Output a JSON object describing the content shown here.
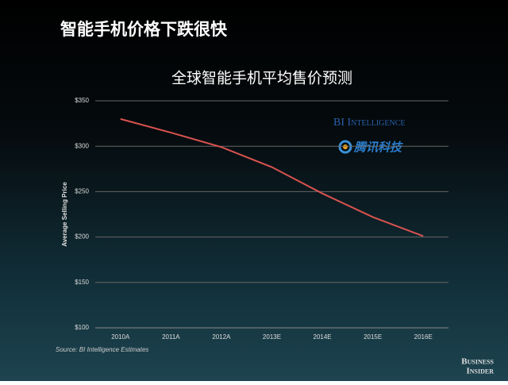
{
  "header": {
    "title": "智能手机价格下跌很快"
  },
  "chart_data": {
    "type": "line",
    "title": "全球智能手机平均售价预测",
    "y_label": "Average Selling Price",
    "source": "Source: BI Intelligence Estimates",
    "categories": [
      "2010A",
      "2011A",
      "2012A",
      "2013E",
      "2014E",
      "2015E",
      "2016E"
    ],
    "series": [
      {
        "name": "Average Selling Price",
        "color": "#d9534f",
        "values": [
          330,
          315,
          299,
          277,
          248,
          222,
          201
        ]
      }
    ],
    "ylim": [
      100,
      350
    ],
    "yticks": [
      {
        "value": 100,
        "label": "$100"
      },
      {
        "value": 150,
        "label": "$150"
      },
      {
        "value": 200,
        "label": "$200"
      },
      {
        "value": 250,
        "label": "$250"
      },
      {
        "value": 300,
        "label": "$300"
      },
      {
        "value": 350,
        "label": "$350"
      }
    ],
    "grid": true
  },
  "logos": {
    "bi_intelligence": "BI Intelligence",
    "tencent": "腾讯科技",
    "brand": [
      "Business",
      "Insider"
    ]
  }
}
